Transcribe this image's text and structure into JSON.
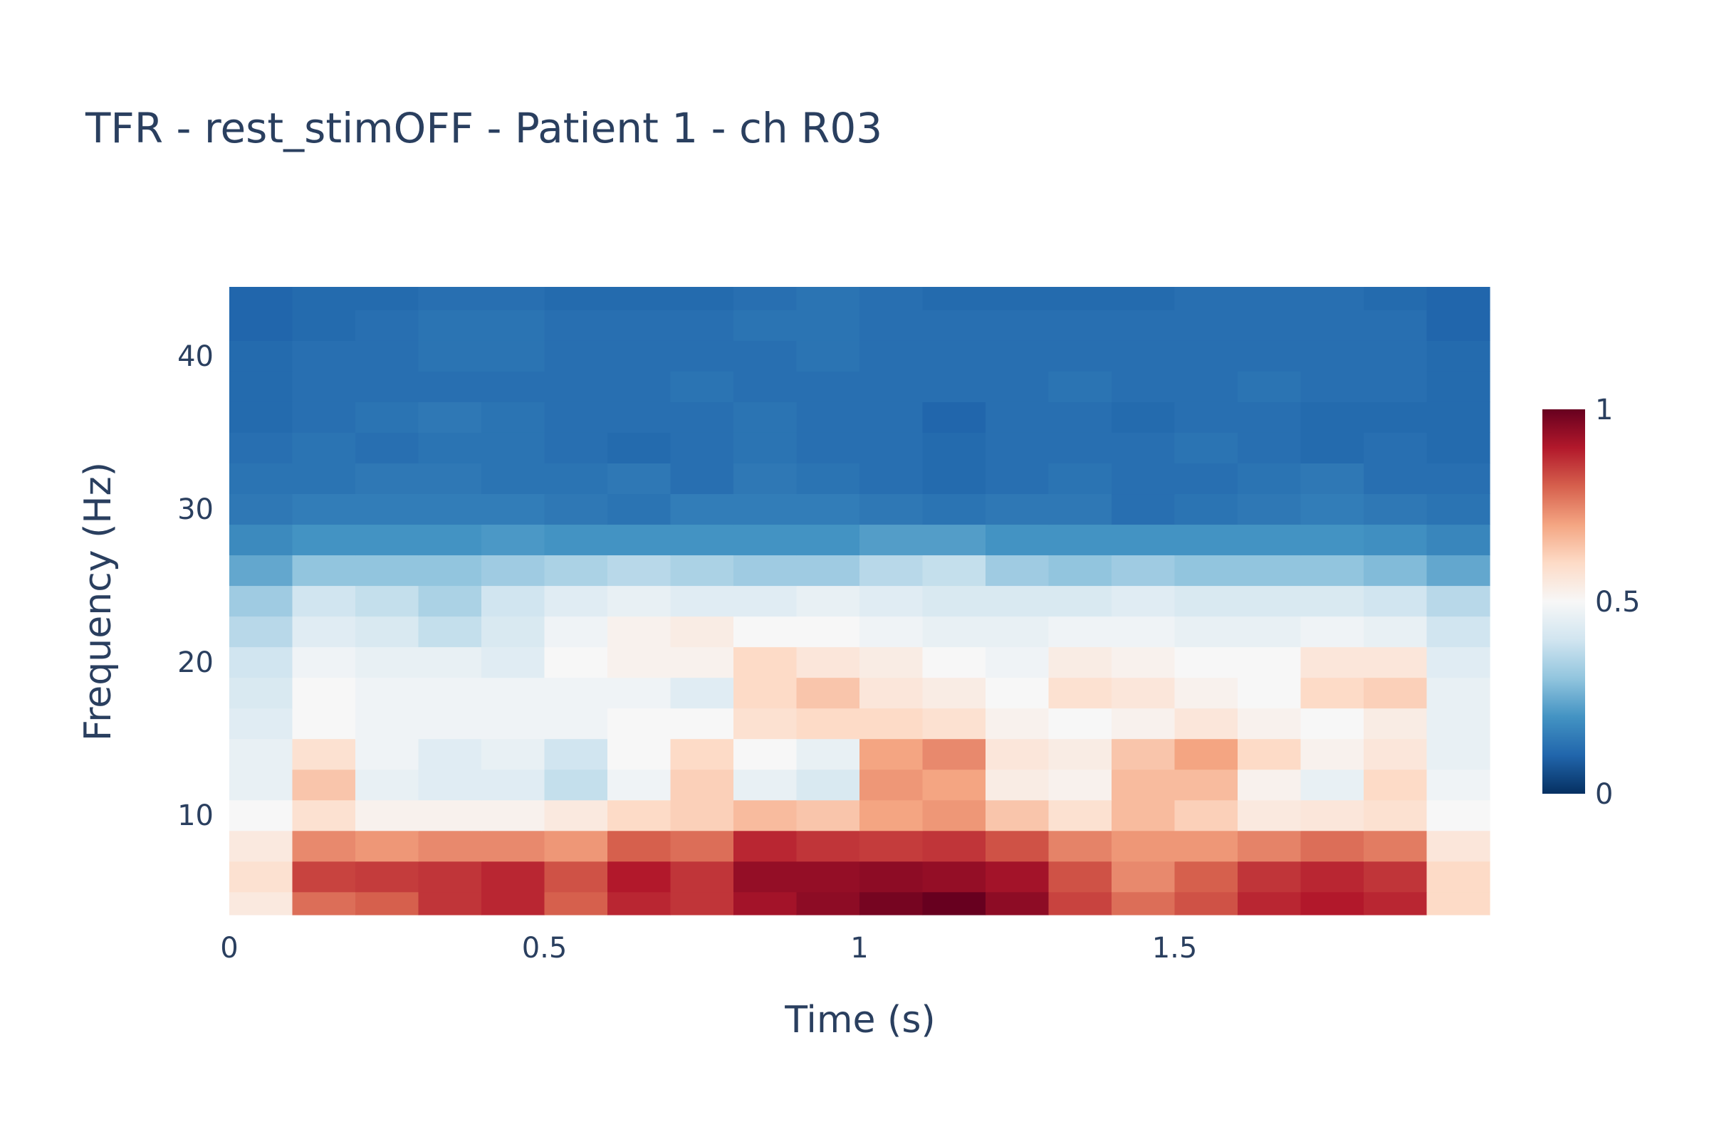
{
  "chart_data": {
    "type": "heatmap",
    "title": "TFR - rest_stimOFF - Patient 1 - ch R03",
    "xlabel": "Time (s)",
    "ylabel": "Frequency (Hz)",
    "xlim": [
      0,
      2.0
    ],
    "ylim": [
      3.5,
      44.5
    ],
    "x_ticks": [
      "0",
      "0.5",
      "1",
      "1.5"
    ],
    "x_tick_values": [
      0,
      0.5,
      1,
      1.5
    ],
    "y_ticks": [
      "10",
      "20",
      "30",
      "40"
    ],
    "y_tick_values": [
      10,
      20,
      30,
      40
    ],
    "colorscale": "RdBu reversed",
    "colorscale_stops": [
      "#053061",
      "#2166ac",
      "#4393c3",
      "#92c5de",
      "#d1e5f0",
      "#f7f7f7",
      "#fddbc7",
      "#f4a582",
      "#d6604d",
      "#b2182b",
      "#67001f"
    ],
    "colorbar": {
      "min": 0,
      "max": 1,
      "ticks": [
        "0",
        "0.5",
        "1"
      ],
      "tick_values": [
        0,
        0.5,
        1
      ]
    },
    "x": [
      0.05,
      0.15,
      0.25,
      0.35,
      0.45,
      0.55,
      0.65,
      0.75,
      0.85,
      0.95,
      1.05,
      1.15,
      1.25,
      1.35,
      1.45,
      1.55,
      1.65,
      1.75,
      1.85,
      1.95
    ],
    "y": [
      4,
      6,
      8,
      10,
      12,
      14,
      16,
      18,
      20,
      22,
      24,
      26,
      28,
      30,
      32,
      34,
      36,
      38,
      40,
      42,
      44
    ],
    "z": [
      [
        0.55,
        0.78,
        0.8,
        0.86,
        0.88,
        0.8,
        0.88,
        0.86,
        0.92,
        0.95,
        0.98,
        1.0,
        0.95,
        0.84,
        0.78,
        0.82,
        0.88,
        0.9,
        0.88,
        0.6
      ],
      [
        0.58,
        0.84,
        0.85,
        0.86,
        0.88,
        0.82,
        0.9,
        0.86,
        0.94,
        0.94,
        0.95,
        0.94,
        0.92,
        0.82,
        0.74,
        0.8,
        0.86,
        0.88,
        0.86,
        0.6
      ],
      [
        0.55,
        0.74,
        0.72,
        0.74,
        0.74,
        0.72,
        0.8,
        0.78,
        0.88,
        0.86,
        0.85,
        0.86,
        0.82,
        0.75,
        0.72,
        0.72,
        0.75,
        0.78,
        0.76,
        0.56
      ],
      [
        0.5,
        0.58,
        0.52,
        0.52,
        0.52,
        0.55,
        0.6,
        0.62,
        0.66,
        0.64,
        0.7,
        0.72,
        0.64,
        0.58,
        0.66,
        0.62,
        0.55,
        0.56,
        0.58,
        0.5
      ],
      [
        0.46,
        0.64,
        0.46,
        0.44,
        0.44,
        0.38,
        0.48,
        0.62,
        0.46,
        0.42,
        0.72,
        0.7,
        0.54,
        0.52,
        0.66,
        0.66,
        0.52,
        0.46,
        0.6,
        0.48
      ],
      [
        0.46,
        0.58,
        0.48,
        0.44,
        0.46,
        0.4,
        0.5,
        0.6,
        0.5,
        0.46,
        0.7,
        0.74,
        0.56,
        0.54,
        0.64,
        0.7,
        0.6,
        0.52,
        0.56,
        0.46
      ],
      [
        0.44,
        0.5,
        0.48,
        0.48,
        0.48,
        0.48,
        0.5,
        0.5,
        0.58,
        0.6,
        0.6,
        0.58,
        0.52,
        0.5,
        0.52,
        0.56,
        0.52,
        0.5,
        0.54,
        0.46
      ],
      [
        0.42,
        0.5,
        0.48,
        0.48,
        0.48,
        0.48,
        0.48,
        0.44,
        0.6,
        0.64,
        0.56,
        0.54,
        0.5,
        0.58,
        0.56,
        0.52,
        0.5,
        0.6,
        0.62,
        0.46
      ],
      [
        0.4,
        0.48,
        0.46,
        0.46,
        0.44,
        0.5,
        0.52,
        0.52,
        0.6,
        0.56,
        0.54,
        0.5,
        0.48,
        0.54,
        0.52,
        0.5,
        0.5,
        0.56,
        0.56,
        0.44
      ],
      [
        0.36,
        0.44,
        0.42,
        0.38,
        0.42,
        0.48,
        0.52,
        0.54,
        0.5,
        0.5,
        0.48,
        0.46,
        0.46,
        0.48,
        0.48,
        0.46,
        0.46,
        0.48,
        0.46,
        0.4
      ],
      [
        0.32,
        0.4,
        0.38,
        0.34,
        0.4,
        0.44,
        0.46,
        0.44,
        0.44,
        0.46,
        0.44,
        0.42,
        0.42,
        0.42,
        0.44,
        0.42,
        0.42,
        0.42,
        0.4,
        0.36
      ],
      [
        0.24,
        0.3,
        0.3,
        0.3,
        0.32,
        0.34,
        0.36,
        0.34,
        0.32,
        0.32,
        0.36,
        0.38,
        0.32,
        0.3,
        0.32,
        0.3,
        0.3,
        0.3,
        0.28,
        0.24
      ],
      [
        0.18,
        0.2,
        0.2,
        0.2,
        0.21,
        0.2,
        0.2,
        0.2,
        0.2,
        0.2,
        0.22,
        0.22,
        0.2,
        0.2,
        0.2,
        0.2,
        0.2,
        0.2,
        0.19,
        0.17
      ],
      [
        0.14,
        0.15,
        0.15,
        0.15,
        0.15,
        0.14,
        0.13,
        0.15,
        0.15,
        0.15,
        0.14,
        0.13,
        0.14,
        0.14,
        0.12,
        0.13,
        0.14,
        0.15,
        0.14,
        0.13
      ],
      [
        0.13,
        0.13,
        0.14,
        0.14,
        0.13,
        0.13,
        0.14,
        0.12,
        0.14,
        0.13,
        0.12,
        0.11,
        0.12,
        0.13,
        0.12,
        0.12,
        0.13,
        0.14,
        0.12,
        0.12
      ],
      [
        0.12,
        0.13,
        0.12,
        0.13,
        0.13,
        0.12,
        0.11,
        0.12,
        0.13,
        0.12,
        0.12,
        0.11,
        0.12,
        0.12,
        0.12,
        0.13,
        0.12,
        0.11,
        0.12,
        0.11
      ],
      [
        0.11,
        0.12,
        0.13,
        0.14,
        0.13,
        0.12,
        0.12,
        0.12,
        0.13,
        0.12,
        0.12,
        0.1,
        0.12,
        0.12,
        0.11,
        0.12,
        0.12,
        0.11,
        0.11,
        0.11
      ],
      [
        0.11,
        0.12,
        0.12,
        0.12,
        0.12,
        0.12,
        0.12,
        0.13,
        0.12,
        0.12,
        0.12,
        0.12,
        0.12,
        0.13,
        0.12,
        0.12,
        0.13,
        0.12,
        0.12,
        0.11
      ],
      [
        0.11,
        0.12,
        0.12,
        0.13,
        0.13,
        0.12,
        0.12,
        0.12,
        0.12,
        0.13,
        0.12,
        0.12,
        0.12,
        0.12,
        0.12,
        0.12,
        0.12,
        0.12,
        0.12,
        0.11
      ],
      [
        0.1,
        0.11,
        0.12,
        0.13,
        0.13,
        0.12,
        0.12,
        0.12,
        0.13,
        0.13,
        0.12,
        0.12,
        0.12,
        0.12,
        0.12,
        0.12,
        0.12,
        0.12,
        0.12,
        0.1
      ],
      [
        0.1,
        0.11,
        0.11,
        0.12,
        0.12,
        0.11,
        0.11,
        0.11,
        0.12,
        0.13,
        0.12,
        0.11,
        0.11,
        0.11,
        0.11,
        0.12,
        0.12,
        0.12,
        0.11,
        0.1
      ]
    ]
  }
}
